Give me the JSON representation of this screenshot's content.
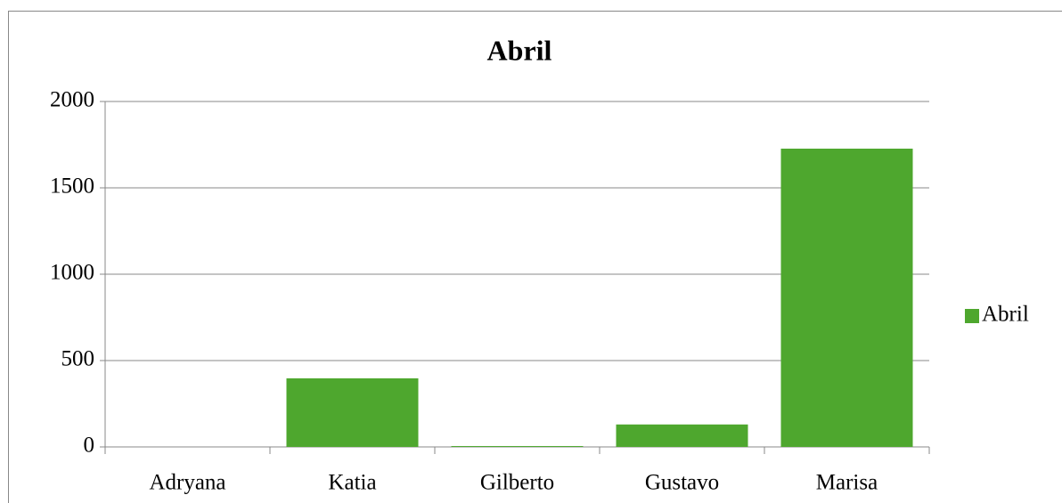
{
  "chart_data": {
    "type": "bar",
    "title": "Abril",
    "categories": [
      "Adryana",
      "Katia",
      "Gilberto",
      "Gustavo",
      "Marisa"
    ],
    "series": [
      {
        "name": "Abril",
        "color": "#4ea72e",
        "values": [
          0,
          397,
          5,
          130,
          1727
        ]
      }
    ],
    "ylim": [
      0,
      2000
    ],
    "yticks": [
      0,
      500,
      1000,
      1500,
      2000
    ],
    "grid": true,
    "legend": "right"
  }
}
